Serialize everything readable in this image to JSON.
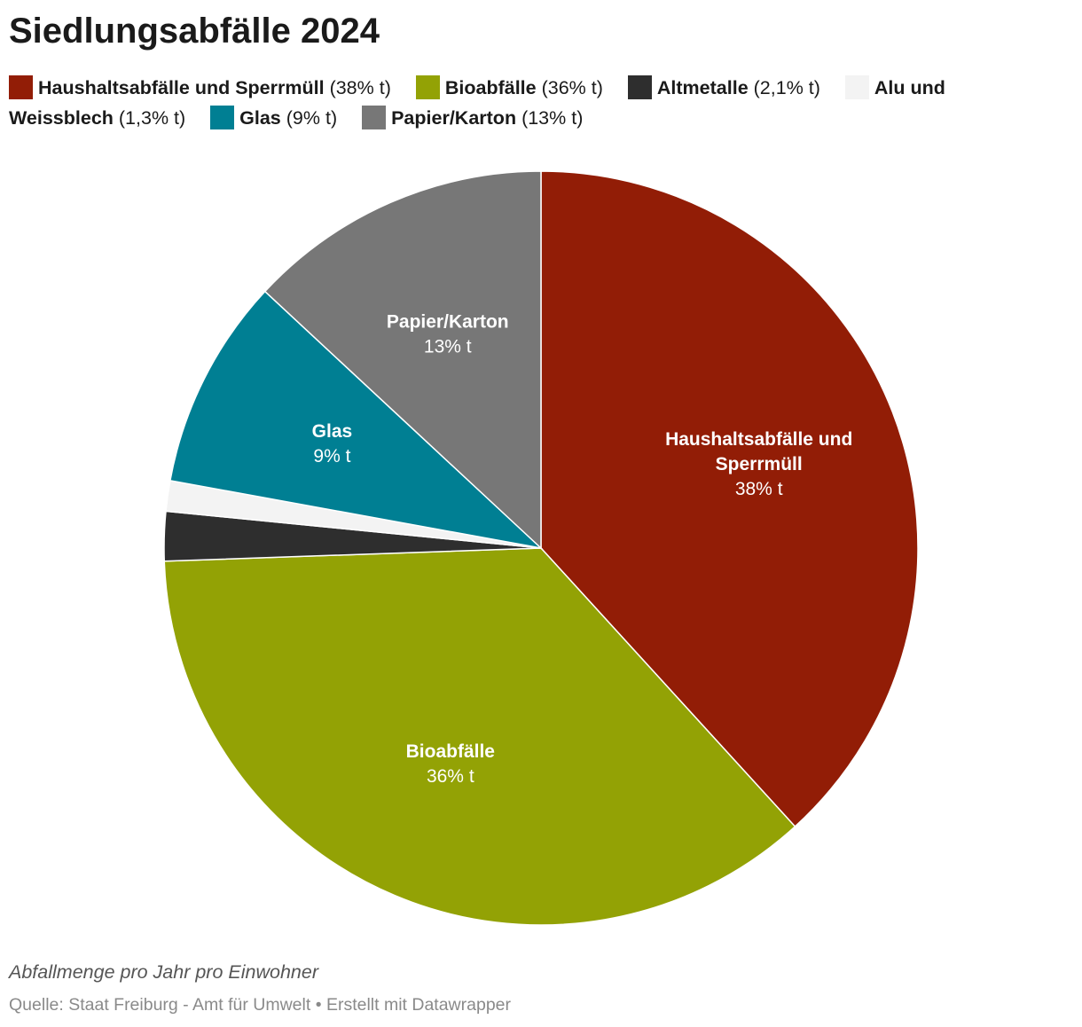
{
  "chart_data": {
    "type": "pie",
    "title": "Siedlungsabfälle 2024",
    "slices": [
      {
        "name": "Haushaltsabfälle und Sperrmüll",
        "value": 38,
        "display": "38% t",
        "color": "#921d06",
        "legend_value": "(38% t)",
        "label_lines": [
          "Haushaltsabfälle und",
          "Sperrmüll"
        ]
      },
      {
        "name": "Bioabfälle",
        "value": 36,
        "display": "36% t",
        "color": "#93a205",
        "legend_value": "(36% t)",
        "label_lines": [
          "Bioabfälle"
        ]
      },
      {
        "name": "Altmetalle",
        "value": 2.1,
        "display": "2,1% t",
        "color": "#2e2e2e",
        "legend_value": "(2,1% t)",
        "label_lines": []
      },
      {
        "name": "Alu und Weissblech",
        "value": 1.3,
        "display": "1,3% t",
        "color": "#f3f3f3",
        "legend_value": "(1,3% t)",
        "label_lines": []
      },
      {
        "name": "Glas",
        "value": 9,
        "display": "9% t",
        "color": "#007f93",
        "legend_value": "(9% t)",
        "label_lines": [
          "Glas"
        ]
      },
      {
        "name": "Papier/Karton",
        "value": 13,
        "display": "13% t",
        "color": "#777777",
        "legend_value": "(13% t)",
        "label_lines": [
          "Papier/Karton"
        ]
      }
    ],
    "legend_position": "top",
    "notes": "Abfallmenge pro Jahr pro Einwohner",
    "source": "Quelle: Staat Freiburg - Amt für Umwelt • Erstellt mit Datawrapper"
  }
}
